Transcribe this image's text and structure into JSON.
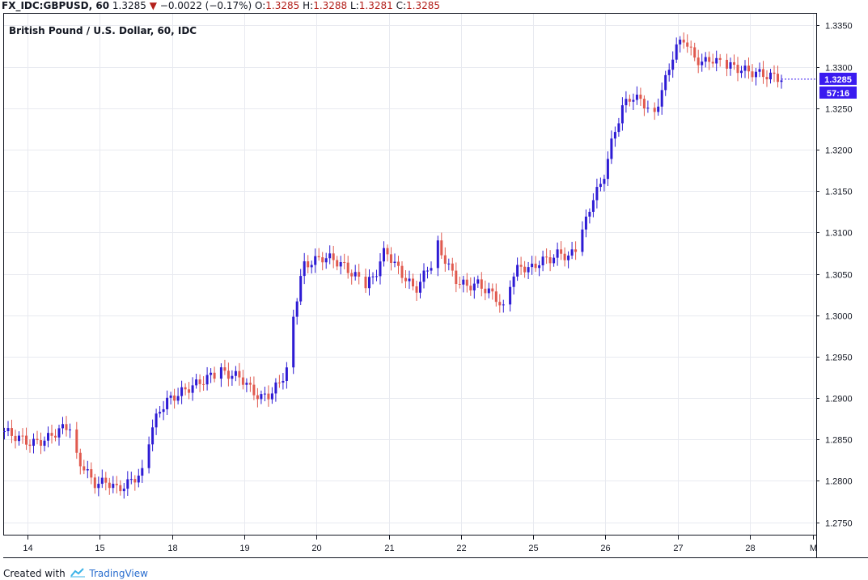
{
  "header": {
    "symbol_interval": "FX_IDC:GBPUSD, 60",
    "last": "1.3285",
    "change": "−0.0022 (−0.17%)",
    "open_label": "O:",
    "open": "1.3285",
    "high_label": "H:",
    "high": "1.3288",
    "low_label": "L:",
    "low": "1.3281",
    "close_label": "C:",
    "close": "1.3285",
    "down_arrow": "▼"
  },
  "title": "British Pound / U.S. Dollar, 60, IDC",
  "price_tag": {
    "value": "1.3285",
    "timer": "57:16"
  },
  "footer": {
    "created": "Created with",
    "brand": "TradingView"
  },
  "colors": {
    "up": "#2d1bd4",
    "down": "#e05a4f",
    "grid": "#e8eaf0",
    "axis": "#131722",
    "tag": "#3a1bf0"
  },
  "chart_data": {
    "type": "candlestick",
    "title": "British Pound / U.S. Dollar, 60, IDC",
    "xlabel": "",
    "ylabel": "",
    "ylim": [
      1.2735,
      1.3365
    ],
    "yticks": [
      "1.3350",
      "1.3300",
      "1.3250",
      "1.3200",
      "1.3150",
      "1.3100",
      "1.3050",
      "1.3000",
      "1.2950",
      "1.2900",
      "1.2850",
      "1.2800",
      "1.2750"
    ],
    "xticks": [
      "14",
      "15",
      "18",
      "19",
      "20",
      "21",
      "22",
      "25",
      "26",
      "27",
      "28",
      "M"
    ],
    "grid": true,
    "last_price": 1.3285,
    "series": [
      {
        "x": "14",
        "values": [
          1.286,
          1.2852,
          1.2845,
          1.285,
          1.2862,
          1.2868
        ]
      },
      {
        "x": "15",
        "values": [
          1.283,
          1.281,
          1.2795,
          1.28,
          1.279,
          1.2795,
          1.2805,
          1.2812
        ]
      },
      {
        "x": "18",
        "values": [
          1.285,
          1.2885,
          1.2898,
          1.2905,
          1.2912,
          1.2918,
          1.2925,
          1.293
        ]
      },
      {
        "x": "19",
        "values": [
          1.2932,
          1.2928,
          1.2925,
          1.291,
          1.29,
          1.2905,
          1.292,
          1.2945
        ]
      },
      {
        "x": "20",
        "values": [
          1.3,
          1.306,
          1.3065,
          1.307,
          1.3068,
          1.306,
          1.305,
          1.304
        ]
      },
      {
        "x": "21",
        "values": [
          1.3035,
          1.305,
          1.308,
          1.306,
          1.3045,
          1.303,
          1.305,
          1.307
        ]
      },
      {
        "x": "22",
        "values": [
          1.3085,
          1.306,
          1.304,
          1.3035,
          1.3038,
          1.303,
          1.302,
          1.3
        ]
      },
      {
        "x": "25",
        "values": [
          1.304,
          1.306,
          1.3055,
          1.3065,
          1.3068,
          1.3075,
          1.307,
          1.3085
        ]
      },
      {
        "x": "26",
        "values": [
          1.31,
          1.314,
          1.316,
          1.321,
          1.325,
          1.3265,
          1.3258,
          1.3248
        ]
      },
      {
        "x": "27",
        "values": [
          1.3245,
          1.328,
          1.332,
          1.3335,
          1.331,
          1.3305,
          1.331,
          1.33
        ]
      },
      {
        "x": "28",
        "values": [
          1.3302,
          1.3295,
          1.329,
          1.3285
        ]
      }
    ]
  }
}
